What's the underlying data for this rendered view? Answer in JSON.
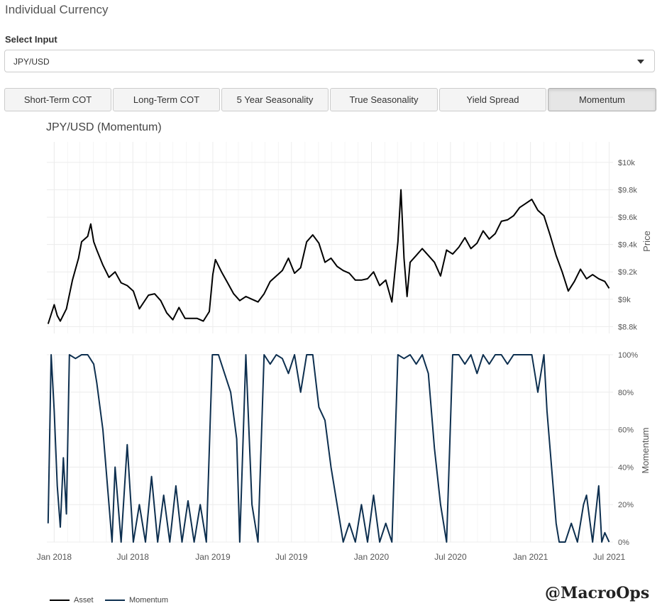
{
  "page": {
    "title": "Individual Currency"
  },
  "select": {
    "label": "Select Input",
    "value": "JPY/USD"
  },
  "tabs": [
    {
      "label": "Short-Term COT",
      "active": false
    },
    {
      "label": "Long-Term COT",
      "active": false
    },
    {
      "label": "5 Year Seasonality",
      "active": false
    },
    {
      "label": "True Seasonality",
      "active": false
    },
    {
      "label": "Yield Spread",
      "active": false
    },
    {
      "label": "Momentum",
      "active": true
    }
  ],
  "watermark": "@MacroOps",
  "chart_data": {
    "type": "line",
    "title": "JPY/USD (Momentum)",
    "x_ticks": [
      "Jan 2018",
      "Jul 2018",
      "Jan 2019",
      "Jul 2019",
      "Jan 2020",
      "Jul 2020",
      "Jan 2021",
      "Jul 2021"
    ],
    "x_range": [
      "2017-12-15",
      "2021-07-10"
    ],
    "colors": {
      "asset": "#000000",
      "momentum": "#0d2f4f"
    },
    "grid": true,
    "legend_position": "bottom-left",
    "price_panel": {
      "ylabel": "Price",
      "ylim": [
        8.75,
        10.15
      ],
      "y_ticks": [
        "$10k",
        "$9.8k",
        "$9.6k",
        "$9.4k",
        "$9.2k",
        "$9k",
        "$8.8k"
      ],
      "y_tick_values": [
        10.0,
        9.8,
        9.6,
        9.4,
        9.2,
        9.0,
        8.8
      ]
    },
    "momentum_panel": {
      "ylabel": "Momentum",
      "ylim": [
        0,
        100
      ],
      "y_ticks": [
        "100%",
        "80%",
        "60%",
        "40%",
        "20%",
        "0%"
      ],
      "y_tick_values": [
        100,
        80,
        60,
        40,
        20,
        0
      ]
    },
    "series": [
      {
        "name": "Asset",
        "panel": "price",
        "points": [
          [
            "2017-12-18",
            8.82
          ],
          [
            "2018-01-01",
            8.96
          ],
          [
            "2018-01-08",
            8.88
          ],
          [
            "2018-01-15",
            8.84
          ],
          [
            "2018-01-29",
            8.93
          ],
          [
            "2018-02-12",
            9.14
          ],
          [
            "2018-02-26",
            9.3
          ],
          [
            "2018-03-05",
            9.42
          ],
          [
            "2018-03-19",
            9.46
          ],
          [
            "2018-03-26",
            9.55
          ],
          [
            "2018-04-02",
            9.42
          ],
          [
            "2018-04-09",
            9.36
          ],
          [
            "2018-04-23",
            9.25
          ],
          [
            "2018-05-07",
            9.16
          ],
          [
            "2018-05-21",
            9.2
          ],
          [
            "2018-06-04",
            9.12
          ],
          [
            "2018-06-18",
            9.1
          ],
          [
            "2018-07-02",
            9.06
          ],
          [
            "2018-07-16",
            8.93
          ],
          [
            "2018-08-06",
            9.03
          ],
          [
            "2018-08-20",
            9.04
          ],
          [
            "2018-09-03",
            8.99
          ],
          [
            "2018-09-17",
            8.9
          ],
          [
            "2018-10-01",
            8.85
          ],
          [
            "2018-10-15",
            8.94
          ],
          [
            "2018-10-29",
            8.86
          ],
          [
            "2018-11-12",
            8.86
          ],
          [
            "2018-11-26",
            8.86
          ],
          [
            "2018-12-10",
            8.84
          ],
          [
            "2018-12-24",
            8.91
          ],
          [
            "2019-01-01",
            9.18
          ],
          [
            "2019-01-07",
            9.29
          ],
          [
            "2019-01-21",
            9.2
          ],
          [
            "2019-02-04",
            9.12
          ],
          [
            "2019-02-18",
            9.04
          ],
          [
            "2019-03-04",
            8.99
          ],
          [
            "2019-03-18",
            9.02
          ],
          [
            "2019-04-01",
            9.0
          ],
          [
            "2019-04-15",
            8.98
          ],
          [
            "2019-04-29",
            9.04
          ],
          [
            "2019-05-13",
            9.13
          ],
          [
            "2019-05-27",
            9.17
          ],
          [
            "2019-06-10",
            9.21
          ],
          [
            "2019-06-24",
            9.3
          ],
          [
            "2019-07-08",
            9.19
          ],
          [
            "2019-07-22",
            9.23
          ],
          [
            "2019-08-05",
            9.42
          ],
          [
            "2019-08-19",
            9.47
          ],
          [
            "2019-09-02",
            9.41
          ],
          [
            "2019-09-16",
            9.27
          ],
          [
            "2019-09-30",
            9.3
          ],
          [
            "2019-10-14",
            9.24
          ],
          [
            "2019-10-28",
            9.21
          ],
          [
            "2019-11-11",
            9.19
          ],
          [
            "2019-11-25",
            9.14
          ],
          [
            "2019-12-09",
            9.14
          ],
          [
            "2019-12-23",
            9.15
          ],
          [
            "2020-01-06",
            9.2
          ],
          [
            "2020-01-20",
            9.1
          ],
          [
            "2020-02-03",
            9.14
          ],
          [
            "2020-02-17",
            8.98
          ],
          [
            "2020-03-02",
            9.42
          ],
          [
            "2020-03-09",
            9.8
          ],
          [
            "2020-03-16",
            9.3
          ],
          [
            "2020-03-23",
            9.02
          ],
          [
            "2020-03-30",
            9.27
          ],
          [
            "2020-04-13",
            9.32
          ],
          [
            "2020-04-27",
            9.37
          ],
          [
            "2020-05-11",
            9.32
          ],
          [
            "2020-05-25",
            9.27
          ],
          [
            "2020-06-08",
            9.17
          ],
          [
            "2020-06-22",
            9.36
          ],
          [
            "2020-07-06",
            9.33
          ],
          [
            "2020-07-20",
            9.38
          ],
          [
            "2020-08-03",
            9.45
          ],
          [
            "2020-08-17",
            9.37
          ],
          [
            "2020-08-31",
            9.41
          ],
          [
            "2020-09-14",
            9.5
          ],
          [
            "2020-09-28",
            9.44
          ],
          [
            "2020-10-12",
            9.48
          ],
          [
            "2020-10-26",
            9.57
          ],
          [
            "2020-11-09",
            9.58
          ],
          [
            "2020-11-23",
            9.61
          ],
          [
            "2020-12-07",
            9.67
          ],
          [
            "2020-12-21",
            9.7
          ],
          [
            "2021-01-04",
            9.73
          ],
          [
            "2021-01-18",
            9.65
          ],
          [
            "2021-02-01",
            9.61
          ],
          [
            "2021-02-15",
            9.47
          ],
          [
            "2021-03-01",
            9.32
          ],
          [
            "2021-03-15",
            9.2
          ],
          [
            "2021-03-29",
            9.06
          ],
          [
            "2021-04-12",
            9.13
          ],
          [
            "2021-04-26",
            9.22
          ],
          [
            "2021-05-10",
            9.15
          ],
          [
            "2021-05-24",
            9.18
          ],
          [
            "2021-06-07",
            9.15
          ],
          [
            "2021-06-21",
            9.13
          ],
          [
            "2021-07-01",
            9.08
          ]
        ]
      },
      {
        "name": "Momentum",
        "panel": "momentum",
        "points": [
          [
            "2017-12-18",
            10
          ],
          [
            "2017-12-25",
            100
          ],
          [
            "2018-01-01",
            70
          ],
          [
            "2018-01-08",
            30
          ],
          [
            "2018-01-15",
            8
          ],
          [
            "2018-01-22",
            45
          ],
          [
            "2018-01-29",
            15
          ],
          [
            "2018-02-05",
            100
          ],
          [
            "2018-02-19",
            98
          ],
          [
            "2018-03-05",
            100
          ],
          [
            "2018-03-19",
            100
          ],
          [
            "2018-04-02",
            95
          ],
          [
            "2018-04-09",
            85
          ],
          [
            "2018-04-23",
            60
          ],
          [
            "2018-05-07",
            20
          ],
          [
            "2018-05-14",
            0
          ],
          [
            "2018-05-21",
            40
          ],
          [
            "2018-06-04",
            0
          ],
          [
            "2018-06-18",
            52
          ],
          [
            "2018-07-02",
            0
          ],
          [
            "2018-07-16",
            20
          ],
          [
            "2018-07-30",
            0
          ],
          [
            "2018-08-13",
            35
          ],
          [
            "2018-08-27",
            0
          ],
          [
            "2018-09-10",
            25
          ],
          [
            "2018-09-24",
            0
          ],
          [
            "2018-10-08",
            30
          ],
          [
            "2018-10-22",
            0
          ],
          [
            "2018-11-05",
            22
          ],
          [
            "2018-11-19",
            0
          ],
          [
            "2018-12-03",
            20
          ],
          [
            "2018-12-17",
            0
          ],
          [
            "2018-12-31",
            100
          ],
          [
            "2019-01-14",
            100
          ],
          [
            "2019-01-28",
            90
          ],
          [
            "2019-02-11",
            80
          ],
          [
            "2019-02-25",
            55
          ],
          [
            "2019-03-04",
            0
          ],
          [
            "2019-03-18",
            100
          ],
          [
            "2019-04-01",
            20
          ],
          [
            "2019-04-15",
            0
          ],
          [
            "2019-04-29",
            100
          ],
          [
            "2019-05-13",
            95
          ],
          [
            "2019-05-27",
            100
          ],
          [
            "2019-06-10",
            98
          ],
          [
            "2019-06-24",
            90
          ],
          [
            "2019-07-08",
            100
          ],
          [
            "2019-07-22",
            80
          ],
          [
            "2019-08-05",
            100
          ],
          [
            "2019-08-19",
            100
          ],
          [
            "2019-09-02",
            72
          ],
          [
            "2019-09-16",
            65
          ],
          [
            "2019-09-30",
            40
          ],
          [
            "2019-10-14",
            20
          ],
          [
            "2019-10-28",
            0
          ],
          [
            "2019-11-11",
            10
          ],
          [
            "2019-11-25",
            0
          ],
          [
            "2019-12-09",
            20
          ],
          [
            "2019-12-23",
            0
          ],
          [
            "2020-01-06",
            25
          ],
          [
            "2020-01-20",
            0
          ],
          [
            "2020-02-03",
            10
          ],
          [
            "2020-02-17",
            0
          ],
          [
            "2020-03-02",
            100
          ],
          [
            "2020-03-16",
            98
          ],
          [
            "2020-03-30",
            100
          ],
          [
            "2020-04-13",
            95
          ],
          [
            "2020-04-27",
            100
          ],
          [
            "2020-05-11",
            90
          ],
          [
            "2020-05-25",
            50
          ],
          [
            "2020-06-08",
            20
          ],
          [
            "2020-06-22",
            0
          ],
          [
            "2020-07-06",
            100
          ],
          [
            "2020-07-20",
            100
          ],
          [
            "2020-08-03",
            95
          ],
          [
            "2020-08-17",
            100
          ],
          [
            "2020-08-31",
            90
          ],
          [
            "2020-09-14",
            100
          ],
          [
            "2020-09-28",
            95
          ],
          [
            "2020-10-12",
            100
          ],
          [
            "2020-10-26",
            100
          ],
          [
            "2020-11-09",
            95
          ],
          [
            "2020-11-23",
            100
          ],
          [
            "2020-12-07",
            100
          ],
          [
            "2020-12-21",
            100
          ],
          [
            "2021-01-04",
            100
          ],
          [
            "2021-01-11",
            90
          ],
          [
            "2021-01-18",
            80
          ],
          [
            "2021-02-01",
            100
          ],
          [
            "2021-02-08",
            70
          ],
          [
            "2021-02-15",
            50
          ],
          [
            "2021-02-22",
            30
          ],
          [
            "2021-03-01",
            10
          ],
          [
            "2021-03-08",
            0
          ],
          [
            "2021-03-22",
            0
          ],
          [
            "2021-04-05",
            10
          ],
          [
            "2021-04-19",
            0
          ],
          [
            "2021-05-03",
            20
          ],
          [
            "2021-05-10",
            25
          ],
          [
            "2021-05-24",
            0
          ],
          [
            "2021-06-07",
            30
          ],
          [
            "2021-06-14",
            0
          ],
          [
            "2021-06-21",
            5
          ],
          [
            "2021-07-01",
            0
          ]
        ]
      }
    ]
  }
}
